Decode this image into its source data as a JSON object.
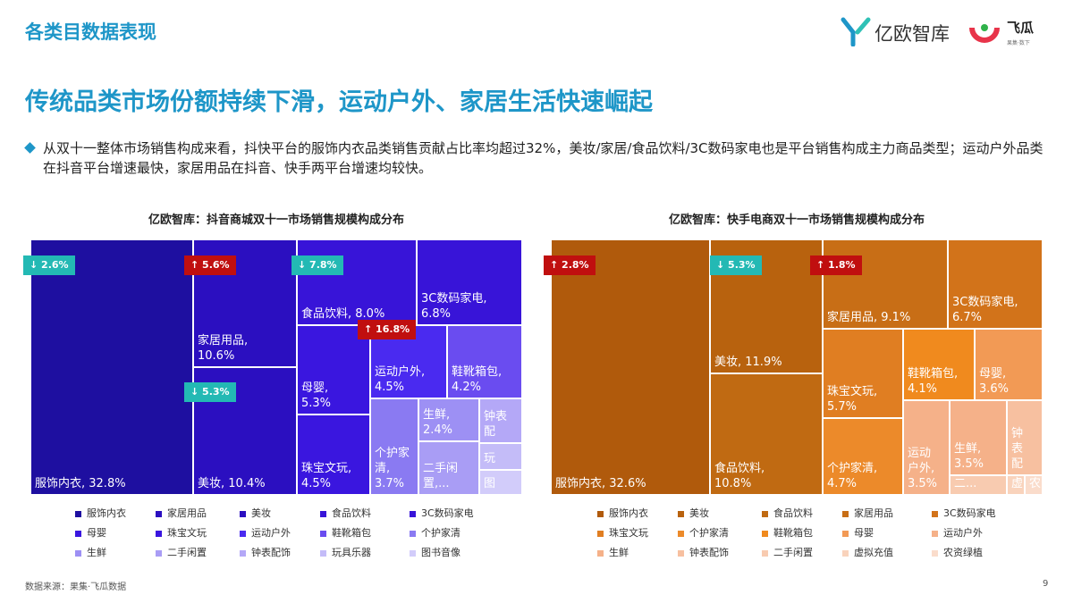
{
  "header": {
    "section_title": "各类目数据表现",
    "logo_primary": "亿欧智库",
    "logo_secondary": "飞瓜",
    "logo_tagline": "果集·数下"
  },
  "headline": "传统品类市场份额持续下滑，运动户外、家居生活快速崛起",
  "summary": "从双十一整体市场销售构成来看，抖快平台的服饰内衣品类销售贡献占比率均超过32%，美妆/家居/食品饮料/3C数码家电也是平台销售构成主力商品类型；运动户外品类在抖音平台增速最快，家居用品在抖音、快手两平台增速均较快。",
  "footer": {
    "source": "数据来源：果集·飞瓜数据",
    "page": "9"
  },
  "badge_colors": {
    "up": "#c00f0f",
    "down": "#23b9b4"
  },
  "chart_data": [
    {
      "type": "treemap",
      "title": "亿欧智库：抖音商城双十一市场销售规模构成分布",
      "tiles": [
        {
          "label": "服饰内衣, 32.8%",
          "category": "服饰内衣",
          "value": 32.8,
          "color": "#1e0fa0",
          "badge": "↓ 2.6%",
          "trend": "down"
        },
        {
          "label": "家居用品,\n10.6%",
          "category": "家居用品",
          "value": 10.6,
          "color": "#2b0fc0",
          "badge": "↑ 5.6%",
          "trend": "up"
        },
        {
          "label": "美妆, 10.4%",
          "category": "美妆",
          "value": 10.4,
          "color": "#2b0fc0",
          "badge": "↓ 5.3%",
          "trend": "down"
        },
        {
          "label": "食品饮料, 8.0%",
          "category": "食品饮料",
          "value": 8.0,
          "color": "#3814d8",
          "badge": "↓ 7.8%",
          "trend": "down"
        },
        {
          "label": "3C数码家电,\n6.8%",
          "category": "3C数码家电",
          "value": 6.8,
          "color": "#3814d8"
        },
        {
          "label": "母婴,\n5.3%",
          "category": "母婴",
          "value": 5.3,
          "color": "#3a16df"
        },
        {
          "label": "运动户外,\n4.5%",
          "category": "运动户外",
          "value": 4.5,
          "color": "#4a2af0",
          "badge": "↑ 16.8%",
          "trend": "up"
        },
        {
          "label": "鞋靴箱包,\n4.2%",
          "category": "鞋靴箱包",
          "value": 4.2,
          "color": "#6a4cf0"
        },
        {
          "label": "珠宝文玩,\n4.5%",
          "category": "珠宝文玩",
          "value": 4.5,
          "color": "#3a16df"
        },
        {
          "label": "个护家\n清,\n3.7%",
          "category": "个护家清",
          "value": 3.7,
          "color": "#8a7af2"
        },
        {
          "label": "生鲜,\n2.4%",
          "category": "生鲜",
          "value": 2.4,
          "color": "#9d90f4"
        },
        {
          "label": "钟表\n配",
          "category": "钟表配饰",
          "color": "#b4a8f7"
        },
        {
          "label": "二手闲\n置,...",
          "category": "二手闲置",
          "color": "#a99df5"
        },
        {
          "label": "玩",
          "category": "玩具乐器",
          "color": "#c4bcf8"
        },
        {
          "label": "图",
          "category": "图书音像",
          "color": "#d2ccfa"
        }
      ],
      "legend": [
        "服饰内衣",
        "家居用品",
        "美妆",
        "食品饮料",
        "3C数码家电",
        "母婴",
        "珠宝文玩",
        "运动户外",
        "鞋靴箱包",
        "个护家清",
        "生鲜",
        "二手闲置",
        "钟表配饰",
        "玩具乐器",
        "图书音像"
      ],
      "legend_colors": [
        "#1e0fa0",
        "#2b0fc0",
        "#2b0fc0",
        "#3814d8",
        "#3814d8",
        "#3a16df",
        "#3a16df",
        "#4a2af0",
        "#6a4cf0",
        "#8a7af2",
        "#9d90f4",
        "#a99df5",
        "#b4a8f7",
        "#c4bcf8",
        "#d2ccfa"
      ]
    },
    {
      "type": "treemap",
      "title": "亿欧智库：快手电商双十一市场销售规模构成分布",
      "tiles": [
        {
          "label": "服饰内衣, 32.6%",
          "category": "服饰内衣",
          "value": 32.6,
          "color": "#b05a0c",
          "badge": "↑ 2.8%",
          "trend": "up"
        },
        {
          "label": "美妆, 11.9%",
          "category": "美妆",
          "value": 11.9,
          "color": "#b8620e",
          "badge": "↓ 5.3%",
          "trend": "down"
        },
        {
          "label": "食品饮料,\n10.8%",
          "category": "食品饮料",
          "value": 10.8,
          "color": "#c06a12"
        },
        {
          "label": "家居用品, 9.1%",
          "category": "家居用品",
          "value": 9.1,
          "color": "#c86e16",
          "badge": "↑ 1.8%",
          "trend": "up"
        },
        {
          "label": "3C数码家电,\n6.7%",
          "category": "3C数码家电",
          "value": 6.7,
          "color": "#d2731a"
        },
        {
          "label": "珠宝文玩,\n5.7%",
          "category": "珠宝文玩",
          "value": 5.7,
          "color": "#e07e22"
        },
        {
          "label": "鞋靴箱包,\n4.1%",
          "category": "鞋靴箱包",
          "value": 4.1,
          "color": "#f08a1e"
        },
        {
          "label": "母婴,\n3.6%",
          "category": "母婴",
          "value": 3.6,
          "color": "#f29a55"
        },
        {
          "label": "个护家清,\n4.7%",
          "category": "个护家清",
          "value": 4.7,
          "color": "#ec8a2a"
        },
        {
          "label": "运动\n户外,\n3.5%",
          "category": "运动户外",
          "value": 3.5,
          "color": "#f5b189"
        },
        {
          "label": "生鲜,\n3.5%",
          "category": "生鲜",
          "value": 3.5,
          "color": "#f5b189"
        },
        {
          "label": "钟\n表\n配",
          "category": "钟表配饰",
          "color": "#f7c0a0"
        },
        {
          "label": "二...",
          "category": "二手闲置",
          "color": "#f8cbb0"
        },
        {
          "label": "虚",
          "category": "虚拟充值",
          "color": "#f9d3bc"
        },
        {
          "label": "农",
          "category": "农资绿植",
          "color": "#fadccb"
        }
      ],
      "legend": [
        "服饰内衣",
        "美妆",
        "食品饮料",
        "家居用品",
        "3C数码家电",
        "珠宝文玩",
        "个护家清",
        "鞋靴箱包",
        "母婴",
        "运动户外",
        "生鲜",
        "钟表配饰",
        "二手闲置",
        "虚拟充值",
        "农资绿植"
      ],
      "legend_colors": [
        "#b05a0c",
        "#b8620e",
        "#c06a12",
        "#c86e16",
        "#d2731a",
        "#e07e22",
        "#ec8a2a",
        "#f08a1e",
        "#f29a55",
        "#f5b189",
        "#f5b189",
        "#f7c0a0",
        "#f8cbb0",
        "#f9d3bc",
        "#fadccb"
      ]
    }
  ]
}
